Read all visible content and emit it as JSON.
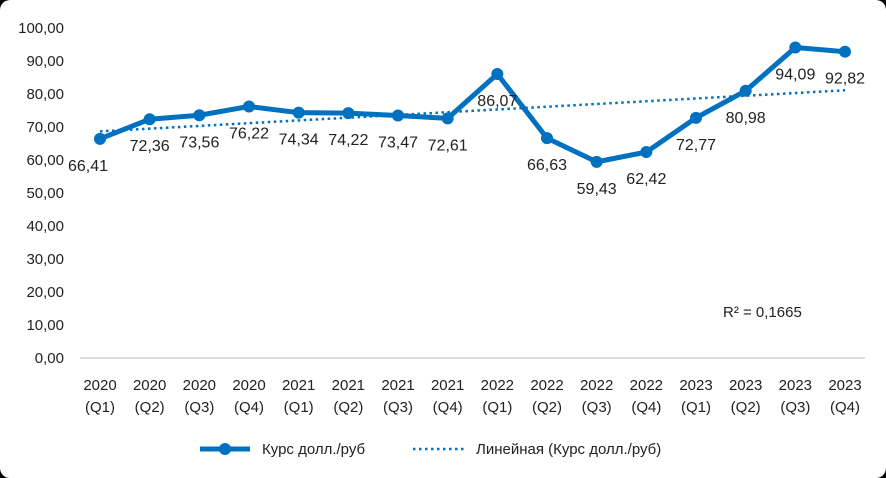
{
  "chart_data": {
    "type": "line",
    "categories": [
      [
        "2020",
        "(Q1)"
      ],
      [
        "2020",
        "(Q2)"
      ],
      [
        "2020",
        "(Q3)"
      ],
      [
        "2020",
        "(Q4)"
      ],
      [
        "2021",
        "(Q1)"
      ],
      [
        "2021",
        "(Q2)"
      ],
      [
        "2021",
        "(Q3)"
      ],
      [
        "2021",
        "(Q4)"
      ],
      [
        "2022",
        "(Q1)"
      ],
      [
        "2022",
        "(Q2)"
      ],
      [
        "2022",
        "(Q3)"
      ],
      [
        "2022",
        "(Q4)"
      ],
      [
        "2023",
        "(Q1)"
      ],
      [
        "2023",
        "(Q2)"
      ],
      [
        "2023",
        "(Q3)"
      ],
      [
        "2023",
        "(Q4)"
      ]
    ],
    "series": [
      {
        "name": "Курс долл./руб",
        "values": [
          66.41,
          72.36,
          73.56,
          76.22,
          74.34,
          74.22,
          73.47,
          72.61,
          86.07,
          66.63,
          59.43,
          62.42,
          72.77,
          80.98,
          94.09,
          92.82
        ],
        "labels": [
          "66,41",
          "72,36",
          "73,56",
          "76,22",
          "74,34",
          "74,22",
          "73,47",
          "72,61",
          "86,07",
          "66,63",
          "59,43",
          "62,42",
          "72,77",
          "80,98",
          "94,09",
          "92,82"
        ],
        "color": "#0070C0"
      }
    ],
    "trendline": {
      "name": "Линейная (Курс долл./руб)",
      "type": "linear",
      "color": "#0070C0",
      "r_squared_label": "R² = 0,1665"
    },
    "y_ticks": [
      "0,00",
      "10,00",
      "20,00",
      "30,00",
      "40,00",
      "50,00",
      "60,00",
      "70,00",
      "80,00",
      "90,00",
      "100,00"
    ],
    "ylim": [
      0,
      100
    ],
    "legend_position": "bottom",
    "grid": false
  }
}
